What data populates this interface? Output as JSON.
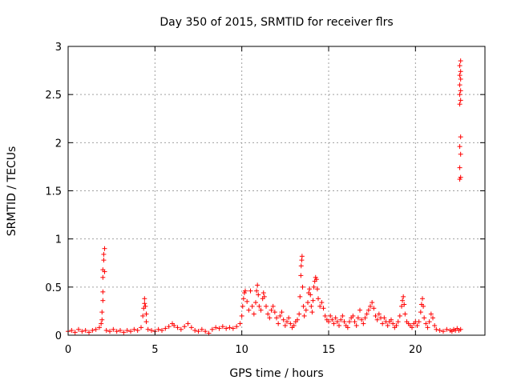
{
  "chart_data": {
    "type": "scatter",
    "title": "Day 350 of 2015, SRMTID for receiver flrs",
    "xlabel": "GPS time / hours",
    "ylabel": "SRMTID / TECUs",
    "xlim": [
      0,
      24
    ],
    "ylim": [
      0,
      3
    ],
    "xticks": [
      0,
      5,
      10,
      15,
      20
    ],
    "yticks": [
      0,
      0.5,
      1,
      1.5,
      2,
      2.5,
      3
    ],
    "xtick_labels": [
      "0",
      "5",
      "10",
      "15",
      "20"
    ],
    "ytick_labels": [
      "0",
      "0.5",
      "1",
      "1.5",
      "2",
      "2.5",
      "3"
    ],
    "grid": true,
    "marker": "+",
    "color": "#ff0000",
    "series": [
      {
        "name": "SRMTID",
        "points": [
          [
            0.0,
            0.04
          ],
          [
            0.2,
            0.05
          ],
          [
            0.4,
            0.03
          ],
          [
            0.6,
            0.06
          ],
          [
            0.8,
            0.04
          ],
          [
            1.0,
            0.05
          ],
          [
            1.2,
            0.03
          ],
          [
            1.4,
            0.05
          ],
          [
            1.6,
            0.06
          ],
          [
            1.8,
            0.08
          ],
          [
            1.9,
            0.12
          ],
          [
            1.95,
            0.24
          ],
          [
            2.0,
            0.45
          ],
          [
            2.0,
            0.6
          ],
          [
            2.0,
            0.68
          ],
          [
            2.05,
            0.78
          ],
          [
            2.05,
            0.84
          ],
          [
            2.1,
            0.9
          ],
          [
            2.1,
            0.66
          ],
          [
            2.0,
            0.36
          ],
          [
            1.95,
            0.16
          ],
          [
            2.2,
            0.05
          ],
          [
            2.4,
            0.04
          ],
          [
            2.6,
            0.06
          ],
          [
            2.8,
            0.04
          ],
          [
            3.0,
            0.05
          ],
          [
            3.2,
            0.03
          ],
          [
            3.4,
            0.05
          ],
          [
            3.6,
            0.04
          ],
          [
            3.8,
            0.06
          ],
          [
            4.0,
            0.05
          ],
          [
            4.2,
            0.08
          ],
          [
            4.3,
            0.2
          ],
          [
            4.35,
            0.28
          ],
          [
            4.4,
            0.33
          ],
          [
            4.4,
            0.38
          ],
          [
            4.45,
            0.3
          ],
          [
            4.5,
            0.22
          ],
          [
            4.5,
            0.14
          ],
          [
            4.6,
            0.06
          ],
          [
            4.8,
            0.05
          ],
          [
            5.0,
            0.04
          ],
          [
            5.2,
            0.06
          ],
          [
            5.4,
            0.05
          ],
          [
            5.6,
            0.07
          ],
          [
            5.8,
            0.09
          ],
          [
            6.0,
            0.12
          ],
          [
            6.1,
            0.1
          ],
          [
            6.3,
            0.08
          ],
          [
            6.5,
            0.06
          ],
          [
            6.7,
            0.09
          ],
          [
            6.9,
            0.12
          ],
          [
            7.1,
            0.08
          ],
          [
            7.3,
            0.05
          ],
          [
            7.5,
            0.04
          ],
          [
            7.7,
            0.06
          ],
          [
            7.9,
            0.04
          ],
          [
            8.1,
            0.02
          ],
          [
            8.3,
            0.06
          ],
          [
            8.5,
            0.08
          ],
          [
            8.7,
            0.07
          ],
          [
            8.9,
            0.09
          ],
          [
            9.1,
            0.07
          ],
          [
            9.3,
            0.08
          ],
          [
            9.5,
            0.07
          ],
          [
            9.7,
            0.09
          ],
          [
            9.9,
            0.12
          ],
          [
            10.0,
            0.2
          ],
          [
            10.05,
            0.3
          ],
          [
            10.1,
            0.38
          ],
          [
            10.15,
            0.44
          ],
          [
            10.2,
            0.46
          ],
          [
            10.3,
            0.35
          ],
          [
            10.4,
            0.26
          ],
          [
            10.5,
            0.46
          ],
          [
            10.6,
            0.3
          ],
          [
            10.7,
            0.22
          ],
          [
            10.8,
            0.34
          ],
          [
            10.85,
            0.46
          ],
          [
            10.9,
            0.52
          ],
          [
            10.95,
            0.42
          ],
          [
            11.0,
            0.3
          ],
          [
            11.1,
            0.26
          ],
          [
            11.2,
            0.38
          ],
          [
            11.25,
            0.44
          ],
          [
            11.3,
            0.4
          ],
          [
            11.4,
            0.3
          ],
          [
            11.5,
            0.22
          ],
          [
            11.6,
            0.18
          ],
          [
            11.7,
            0.26
          ],
          [
            11.8,
            0.3
          ],
          [
            11.9,
            0.24
          ],
          [
            12.0,
            0.18
          ],
          [
            12.1,
            0.12
          ],
          [
            12.2,
            0.2
          ],
          [
            12.3,
            0.24
          ],
          [
            12.4,
            0.16
          ],
          [
            12.5,
            0.1
          ],
          [
            12.6,
            0.14
          ],
          [
            12.7,
            0.18
          ],
          [
            12.8,
            0.12
          ],
          [
            12.9,
            0.08
          ],
          [
            13.0,
            0.1
          ],
          [
            13.1,
            0.14
          ],
          [
            13.2,
            0.16
          ],
          [
            13.3,
            0.22
          ],
          [
            13.35,
            0.4
          ],
          [
            13.4,
            0.62
          ],
          [
            13.42,
            0.72
          ],
          [
            13.45,
            0.78
          ],
          [
            13.47,
            0.82
          ],
          [
            13.5,
            0.5
          ],
          [
            13.55,
            0.3
          ],
          [
            13.6,
            0.2
          ],
          [
            13.7,
            0.26
          ],
          [
            13.8,
            0.34
          ],
          [
            13.85,
            0.44
          ],
          [
            13.9,
            0.48
          ],
          [
            13.95,
            0.42
          ],
          [
            14.0,
            0.3
          ],
          [
            14.05,
            0.24
          ],
          [
            14.1,
            0.36
          ],
          [
            14.15,
            0.5
          ],
          [
            14.2,
            0.56
          ],
          [
            14.25,
            0.6
          ],
          [
            14.3,
            0.58
          ],
          [
            14.35,
            0.48
          ],
          [
            14.4,
            0.38
          ],
          [
            14.5,
            0.3
          ],
          [
            14.6,
            0.34
          ],
          [
            14.7,
            0.28
          ],
          [
            14.8,
            0.2
          ],
          [
            14.9,
            0.16
          ],
          [
            15.0,
            0.14
          ],
          [
            15.1,
            0.2
          ],
          [
            15.2,
            0.16
          ],
          [
            15.3,
            0.12
          ],
          [
            15.4,
            0.18
          ],
          [
            15.5,
            0.14
          ],
          [
            15.6,
            0.1
          ],
          [
            15.7,
            0.16
          ],
          [
            15.8,
            0.2
          ],
          [
            15.9,
            0.14
          ],
          [
            16.0,
            0.1
          ],
          [
            16.1,
            0.08
          ],
          [
            16.2,
            0.14
          ],
          [
            16.3,
            0.18
          ],
          [
            16.4,
            0.2
          ],
          [
            16.5,
            0.14
          ],
          [
            16.6,
            0.1
          ],
          [
            16.7,
            0.18
          ],
          [
            16.8,
            0.26
          ],
          [
            16.9,
            0.16
          ],
          [
            17.0,
            0.12
          ],
          [
            17.1,
            0.18
          ],
          [
            17.2,
            0.22
          ],
          [
            17.3,
            0.26
          ],
          [
            17.4,
            0.3
          ],
          [
            17.5,
            0.34
          ],
          [
            17.6,
            0.28
          ],
          [
            17.7,
            0.2
          ],
          [
            17.8,
            0.16
          ],
          [
            17.9,
            0.22
          ],
          [
            18.0,
            0.18
          ],
          [
            18.1,
            0.12
          ],
          [
            18.2,
            0.18
          ],
          [
            18.3,
            0.14
          ],
          [
            18.4,
            0.1
          ],
          [
            18.5,
            0.14
          ],
          [
            18.6,
            0.16
          ],
          [
            18.7,
            0.12
          ],
          [
            18.8,
            0.08
          ],
          [
            18.9,
            0.1
          ],
          [
            19.0,
            0.14
          ],
          [
            19.1,
            0.2
          ],
          [
            19.2,
            0.3
          ],
          [
            19.25,
            0.36
          ],
          [
            19.3,
            0.4
          ],
          [
            19.35,
            0.32
          ],
          [
            19.4,
            0.22
          ],
          [
            19.5,
            0.14
          ],
          [
            19.6,
            0.12
          ],
          [
            19.7,
            0.1
          ],
          [
            19.8,
            0.08
          ],
          [
            19.9,
            0.12
          ],
          [
            20.0,
            0.14
          ],
          [
            20.1,
            0.1
          ],
          [
            20.2,
            0.14
          ],
          [
            20.3,
            0.24
          ],
          [
            20.35,
            0.32
          ],
          [
            20.4,
            0.38
          ],
          [
            20.45,
            0.3
          ],
          [
            20.5,
            0.18
          ],
          [
            20.6,
            0.12
          ],
          [
            20.7,
            0.08
          ],
          [
            20.8,
            0.14
          ],
          [
            20.9,
            0.22
          ],
          [
            21.0,
            0.18
          ],
          [
            21.1,
            0.1
          ],
          [
            21.2,
            0.06
          ],
          [
            21.4,
            0.05
          ],
          [
            21.6,
            0.04
          ],
          [
            21.8,
            0.06
          ],
          [
            22.0,
            0.05
          ],
          [
            22.1,
            0.04
          ],
          [
            22.2,
            0.06
          ],
          [
            22.3,
            0.05
          ],
          [
            22.4,
            0.07
          ],
          [
            22.5,
            0.05
          ],
          [
            22.6,
            0.06
          ],
          [
            22.55,
            1.62
          ],
          [
            22.6,
            1.64
          ],
          [
            22.55,
            1.74
          ],
          [
            22.6,
            1.88
          ],
          [
            22.55,
            1.96
          ],
          [
            22.6,
            2.06
          ],
          [
            22.55,
            2.4
          ],
          [
            22.6,
            2.44
          ],
          [
            22.55,
            2.5
          ],
          [
            22.6,
            2.54
          ],
          [
            22.55,
            2.6
          ],
          [
            22.6,
            2.66
          ],
          [
            22.55,
            2.7
          ],
          [
            22.6,
            2.74
          ],
          [
            22.55,
            2.8
          ],
          [
            22.6,
            2.85
          ]
        ]
      }
    ]
  }
}
